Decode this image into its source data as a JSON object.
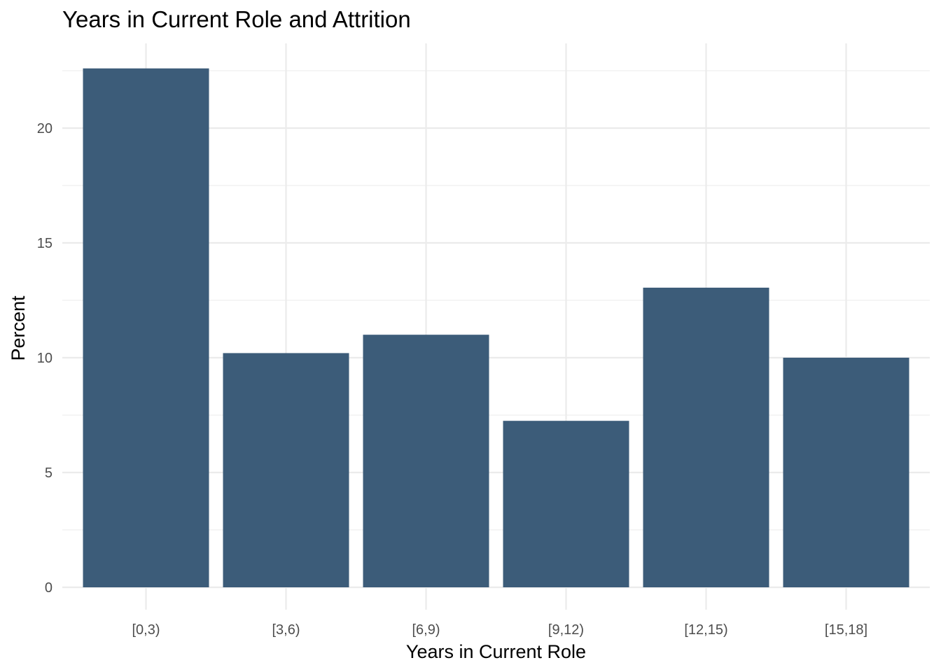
{
  "chart_data": {
    "type": "bar",
    "title": "Years in Current Role and Attrition",
    "xlabel": "Years in Current Role",
    "ylabel": "Percent",
    "categories": [
      "[0,3)",
      "[3,6)",
      "[6,9)",
      "[9,12)",
      "[12,15)",
      "[15,18]"
    ],
    "values": [
      22.6,
      10.2,
      11.0,
      7.25,
      13.05,
      10.0
    ],
    "yticks": [
      0,
      5,
      10,
      15,
      20
    ],
    "ytick_labels": [
      "0",
      "5",
      "10",
      "15",
      "20"
    ],
    "ylim": [
      0,
      23.6
    ],
    "grid": true,
    "bar_color": "#3c5c79"
  }
}
